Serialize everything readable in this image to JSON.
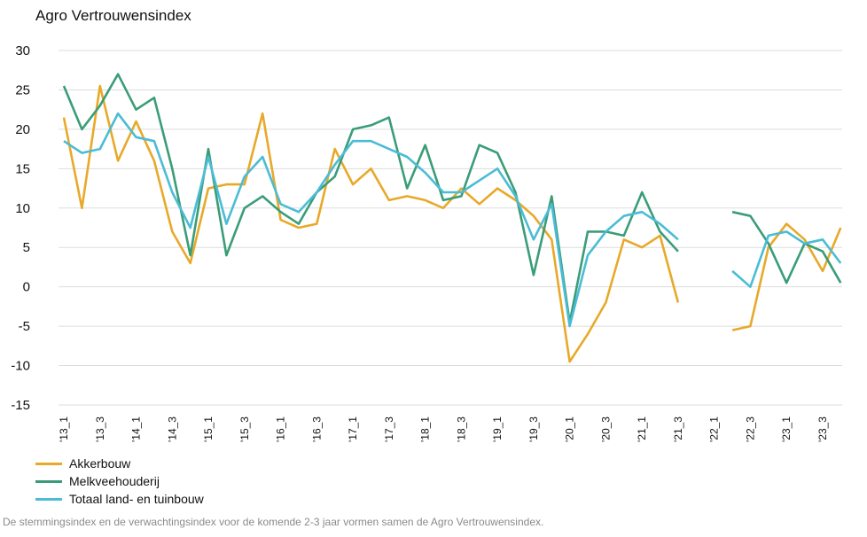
{
  "chart_data": {
    "type": "line",
    "title": "Agro Vertrouwensindex",
    "xlabel": "",
    "ylabel": "",
    "ylim": [
      -15,
      30
    ],
    "yticks": [
      30,
      25,
      20,
      15,
      10,
      5,
      0,
      -5,
      -10,
      -15
    ],
    "grid": true,
    "legend_position": "bottom-left",
    "x": [
      "'13_1",
      "'13_2",
      "'13_3",
      "'13_4",
      "'14_1",
      "'14_2",
      "'14_3",
      "'14_4",
      "'15_1",
      "'15_2",
      "'15_3",
      "'15_4",
      "'16_1",
      "'16_2",
      "'16_3",
      "'16_4",
      "'17_1",
      "'17_2",
      "'17_3",
      "'17_4",
      "'18_1",
      "'18_2",
      "'18_3",
      "'18_4",
      "'19_1",
      "'19_2",
      "'19_3",
      "'19_4",
      "'20_1",
      "'20_2",
      "'20_3",
      "'20_4",
      "'21_1",
      "'21_2",
      "'21_3",
      "'21_4",
      "'22_1",
      "'22_2",
      "'22_3",
      "'22_4",
      "'23_1",
      "'23_2",
      "'23_3",
      "'23_4"
    ],
    "tick_labels": [
      "'13_1",
      "'13_3",
      "'14_1",
      "'14_3",
      "'15_1",
      "'15_3",
      "'16_1",
      "'16_3",
      "'17_1",
      "'17_3",
      "'18_1",
      "'18_3",
      "'19_1",
      "'19_3",
      "'20_1",
      "'20_3",
      "'21_1",
      "'21_3",
      "'22_1",
      "'22_3",
      "'23_1",
      "'23_3"
    ],
    "series": [
      {
        "name": "Akkerbouw",
        "color": "#e8a92a",
        "values": [
          21.5,
          10,
          25.5,
          16,
          21,
          16,
          7,
          3,
          12.5,
          13,
          13,
          22,
          8.5,
          7.5,
          8,
          17.5,
          13,
          15,
          11,
          11.5,
          11,
          10,
          12.5,
          10.5,
          12.5,
          11,
          9,
          6,
          -9.5,
          -6,
          -2,
          6,
          5,
          6.5,
          -2,
          null,
          null,
          -5.5,
          -5,
          5,
          8,
          6,
          2,
          7.5
        ]
      },
      {
        "name": "Melkveehouderij",
        "color": "#3a9d78",
        "values": [
          25.5,
          20,
          23,
          27,
          22.5,
          24,
          15,
          4,
          17.5,
          4,
          10,
          11.5,
          9.5,
          8,
          12,
          14,
          20,
          20.5,
          21.5,
          12.5,
          18,
          11,
          11.5,
          18,
          17,
          12,
          1.5,
          11.5,
          -4.5,
          7,
          7,
          6.5,
          12,
          7,
          4.5,
          null,
          null,
          9.5,
          9,
          5.5,
          0.5,
          5.5,
          4.5,
          0.5
        ]
      },
      {
        "name": "Totaal land- en tuinbouw",
        "color": "#4bbcd6",
        "values": [
          18.5,
          17,
          17.5,
          22,
          19,
          18.5,
          12,
          7.5,
          16.5,
          8,
          14,
          16.5,
          10.5,
          9.5,
          12,
          15.5,
          18.5,
          18.5,
          17.5,
          16.5,
          14.5,
          12,
          12,
          13.5,
          15,
          11.5,
          6,
          10.5,
          -5,
          4,
          7,
          9,
          9.5,
          8,
          6,
          null,
          null,
          2,
          0,
          6.5,
          7,
          5.5,
          6,
          3
        ]
      }
    ]
  },
  "caption": "De stemmingsindex en de verwachtingsindex voor de komende 2-3 jaar vormen samen de Agro Vertrouwensindex."
}
